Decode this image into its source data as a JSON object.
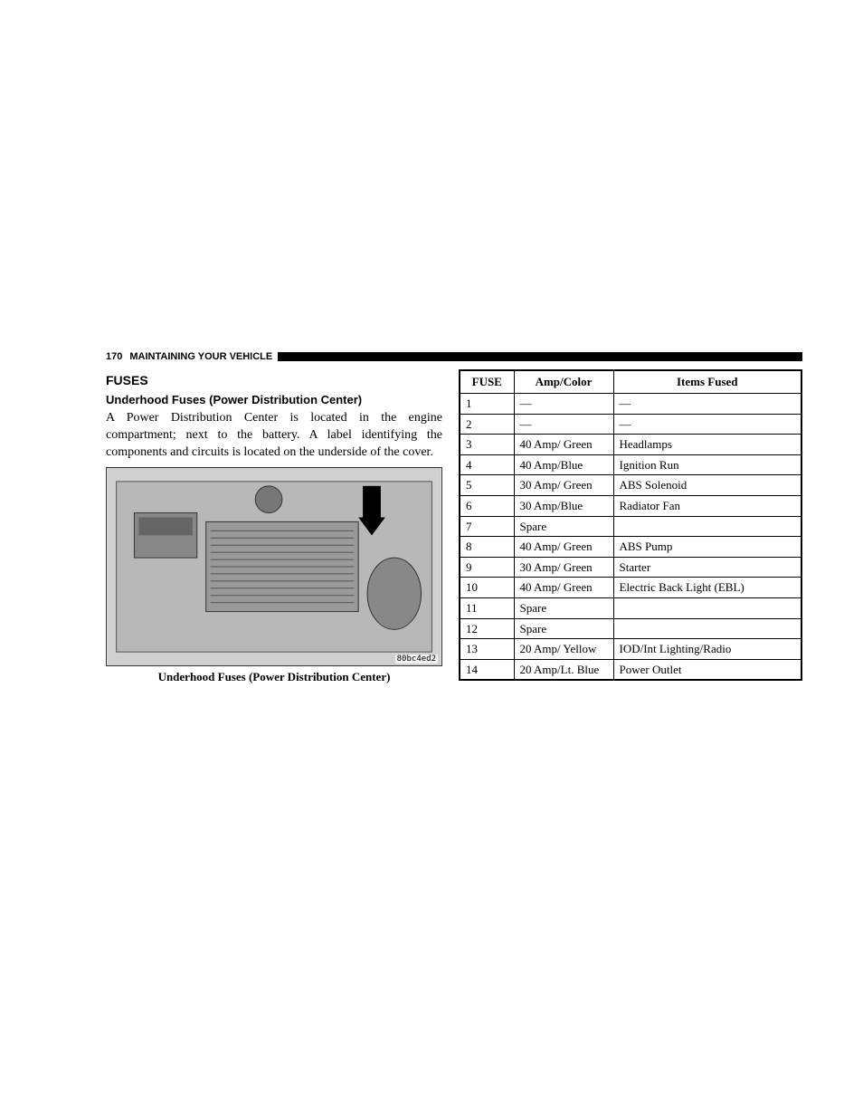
{
  "header": {
    "page_number": "170",
    "section_title": "MAINTAINING YOUR VEHICLE"
  },
  "left_column": {
    "main_heading": "FUSES",
    "sub_heading": "Underhood Fuses (Power Distribution Center)",
    "body_text": "A Power Distribution Center is located in the engine compartment; next to the battery. A label identifying the components and circuits is located on the underside of the cover.",
    "image_caption": "Underhood Fuses (Power Distribution Center)",
    "image_code": "80bc4ed2"
  },
  "fuse_table": {
    "columns": [
      "FUSE",
      "Amp/Color",
      "Items Fused"
    ],
    "rows": [
      [
        "1",
        "—",
        "—"
      ],
      [
        "2",
        "—",
        "—"
      ],
      [
        "3",
        "40 Amp/ Green",
        "Headlamps"
      ],
      [
        "4",
        "40 Amp/Blue",
        "Ignition Run"
      ],
      [
        "5",
        "30 Amp/ Green",
        "ABS Solenoid"
      ],
      [
        "6",
        "30 Amp/Blue",
        "Radiator Fan"
      ],
      [
        "7",
        "Spare",
        ""
      ],
      [
        "8",
        "40 Amp/ Green",
        "ABS Pump"
      ],
      [
        "9",
        "30 Amp/ Green",
        "Starter"
      ],
      [
        "10",
        "40 Amp/ Green",
        "Electric Back Light (EBL)"
      ],
      [
        "11",
        "Spare",
        ""
      ],
      [
        "12",
        "Spare",
        ""
      ],
      [
        "13",
        "20 Amp/ Yellow",
        "IOD/Int Lighting/Radio"
      ],
      [
        "14",
        "20 Amp/Lt. Blue",
        "Power Outlet"
      ]
    ]
  }
}
